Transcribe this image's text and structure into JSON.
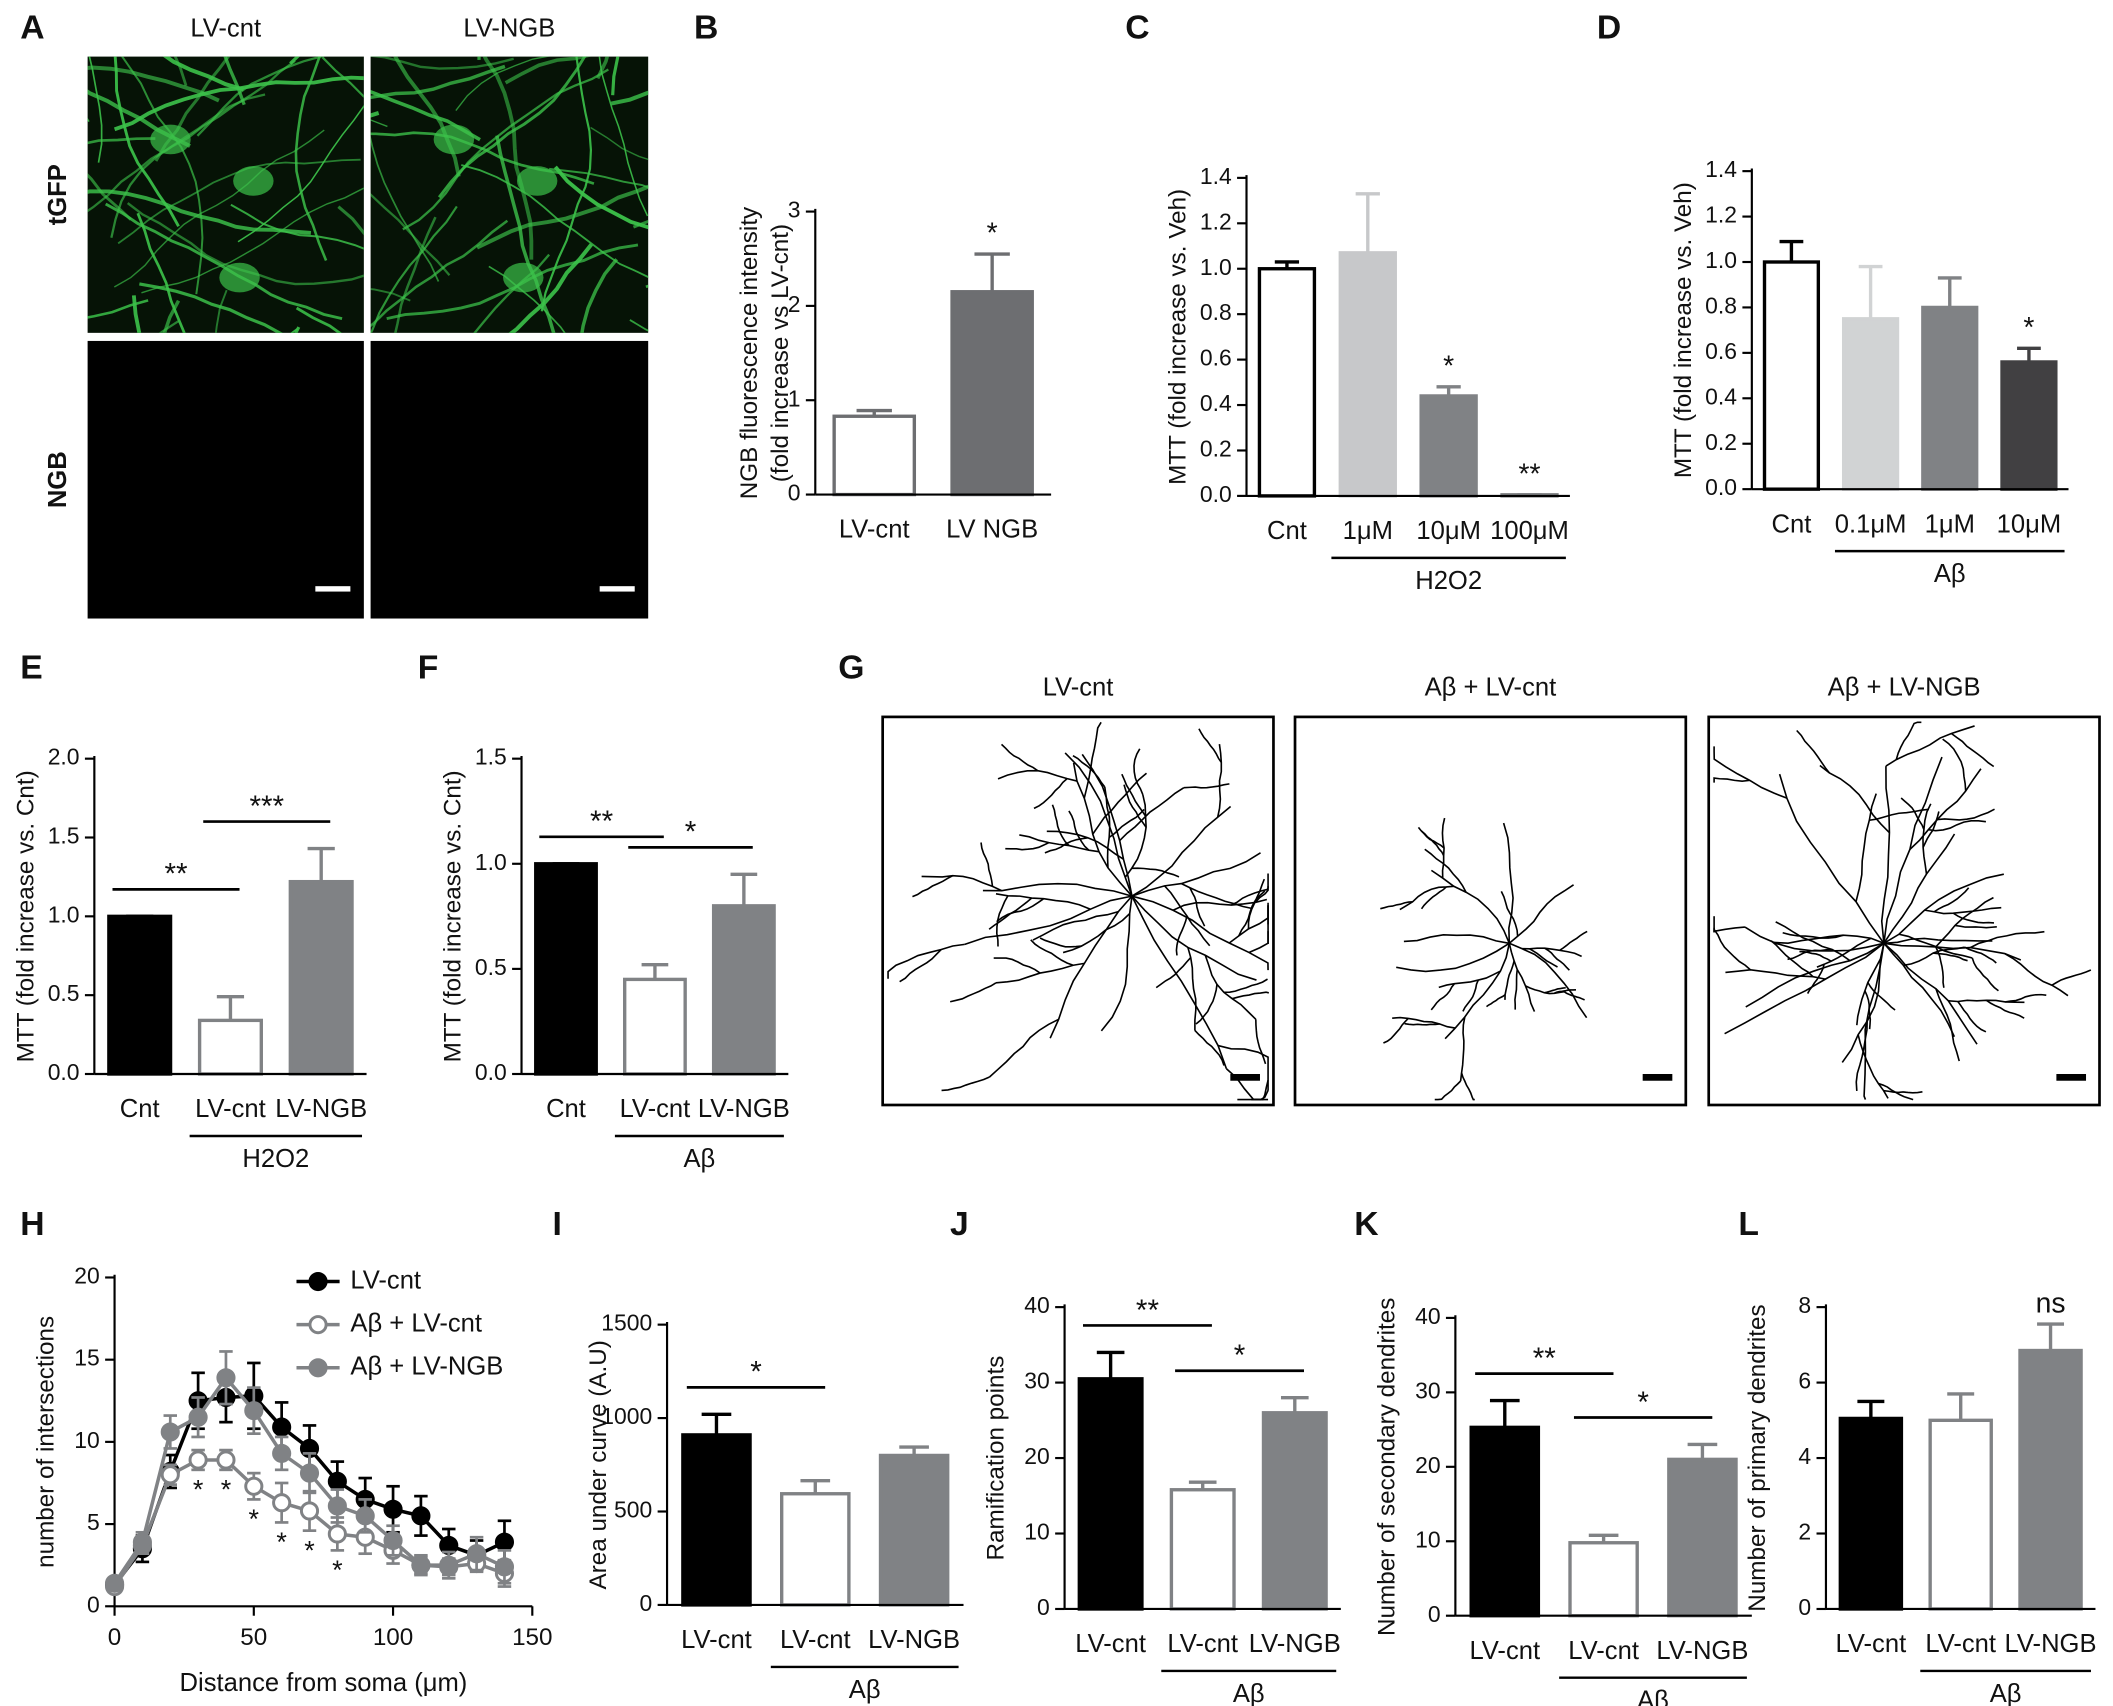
{
  "chart_data": [
    {
      "type": "image-grid",
      "panel": "A",
      "columns": [
        "LV-cnt",
        "LV-NGB"
      ],
      "rows": [
        "tGFP",
        "NGB"
      ],
      "row_colors": [
        "#1aa14a",
        "#000000"
      ]
    },
    {
      "type": "bar",
      "panel": "B",
      "ylabel": [
        "NGB fluorescence intensity",
        "(fold increase vs LV-cnt)"
      ],
      "categories": [
        "LV-cnt",
        "LV NGB"
      ],
      "values": [
        0.83,
        2.15
      ],
      "errors": [
        0.06,
        0.4
      ],
      "colors": [
        "#ffffff",
        "#6d6e71"
      ],
      "edge_colors": [
        "#6d6e71",
        "#6d6e71"
      ],
      "ylim": [
        0,
        3
      ],
      "yticks": [
        0,
        1,
        2,
        3
      ],
      "annotations": [
        {
          "text": "*",
          "index": 1
        }
      ]
    },
    {
      "type": "bar",
      "panel": "C",
      "ylabel": "MTT (fold increase vs. Veh)",
      "categories": [
        "Cnt",
        "1μM",
        "10μM",
        "100μM"
      ],
      "values": [
        1.0,
        1.07,
        0.44,
        0.005
      ],
      "errors": [
        0.03,
        0.26,
        0.04,
        0
      ],
      "colors": [
        "#ffffff",
        "#c7c8ca",
        "#808285",
        "#808285"
      ],
      "edge_colors": [
        "#000000",
        "#c7c8ca",
        "#808285",
        "#808285"
      ],
      "ylim": [
        0,
        1.4
      ],
      "yticks": [
        {
          "value": 0,
          "label": "0.0"
        },
        {
          "value": 0.2,
          "label": "0.2"
        },
        {
          "value": 0.4,
          "label": "0.4"
        },
        {
          "value": 0.6,
          "label": "0.6"
        },
        {
          "value": 0.8,
          "label": "0.8"
        },
        {
          "value": 1,
          "label": "1.0"
        },
        {
          "value": 1.2,
          "label": "1.2"
        },
        {
          "value": 1.4,
          "label": "1.4"
        }
      ],
      "group": {
        "label": "H2O2",
        "from": 1,
        "to": 3
      },
      "annotations": [
        {
          "text": "*",
          "index": 2
        },
        {
          "text": "**",
          "index": 3
        }
      ]
    },
    {
      "type": "bar",
      "panel": "D",
      "ylabel": "MTT (fold increase vs. Veh)",
      "categories": [
        "Cnt",
        "0.1μM",
        "1μM",
        "10μM"
      ],
      "values": [
        1.0,
        0.75,
        0.8,
        0.56
      ],
      "errors": [
        0.09,
        0.23,
        0.13,
        0.06
      ],
      "colors": [
        "#ffffff",
        "#d1d3d4",
        "#808285",
        "#414042"
      ],
      "edge_colors": [
        "#000000",
        "#d1d3d4",
        "#808285",
        "#414042"
      ],
      "ylim": [
        0,
        1.4
      ],
      "yticks": [
        {
          "value": 0,
          "label": "0.0"
        },
        {
          "value": 0.2,
          "label": "0.2"
        },
        {
          "value": 0.4,
          "label": "0.4"
        },
        {
          "value": 0.6,
          "label": "0.6"
        },
        {
          "value": 0.8,
          "label": "0.8"
        },
        {
          "value": 1,
          "label": "1.0"
        },
        {
          "value": 1.2,
          "label": "1.2"
        },
        {
          "value": 1.4,
          "label": "1.4"
        }
      ],
      "group": {
        "label": "Aβ",
        "from": 1,
        "to": 3
      },
      "annotations": [
        {
          "text": "*",
          "index": 3
        }
      ]
    },
    {
      "type": "bar",
      "panel": "E",
      "ylabel": "MTT (fold increase vs. Cnt)",
      "categories": [
        "Cnt",
        "LV-cnt",
        "LV-NGB"
      ],
      "values": [
        1.0,
        0.34,
        1.22
      ],
      "errors": [
        0,
        0.15,
        0.21
      ],
      "colors": [
        "#000000",
        "#ffffff",
        "#808285"
      ],
      "edge_colors": [
        "#000000",
        "#808285",
        "#808285"
      ],
      "ylim": [
        0,
        2
      ],
      "yticks": [
        {
          "value": 0,
          "label": "0.0"
        },
        {
          "value": 0.5,
          "label": "0.5"
        },
        {
          "value": 1,
          "label": "1.0"
        },
        {
          "value": 1.5,
          "label": "1.5"
        },
        {
          "value": 2,
          "label": "2.0"
        }
      ],
      "group": {
        "label": "H2O2",
        "from": 1,
        "to": 2
      },
      "brackets": [
        {
          "text": "**",
          "from": 0,
          "to": 1
        },
        {
          "text": "***",
          "from": 1,
          "to": 2
        }
      ]
    },
    {
      "type": "bar",
      "panel": "F",
      "ylabel": "MTT (fold increase vs. Cnt)",
      "categories": [
        "Cnt",
        "LV-cnt",
        "LV-NGB"
      ],
      "values": [
        1.0,
        0.45,
        0.8
      ],
      "errors": [
        0,
        0.07,
        0.15
      ],
      "colors": [
        "#000000",
        "#ffffff",
        "#808285"
      ],
      "edge_colors": [
        "#000000",
        "#808285",
        "#808285"
      ],
      "ylim": [
        0,
        1.5
      ],
      "yticks": [
        {
          "value": 0,
          "label": "0.0"
        },
        {
          "value": 0.5,
          "label": "0.5"
        },
        {
          "value": 1,
          "label": "1.0"
        },
        {
          "value": 1.5,
          "label": "1.5"
        }
      ],
      "group": {
        "label": "Aβ",
        "from": 1,
        "to": 2
      },
      "brackets": [
        {
          "text": "**",
          "from": 0,
          "to": 1
        },
        {
          "text": "*",
          "from": 1,
          "to": 2
        }
      ]
    },
    {
      "type": "image-row",
      "panel": "G",
      "titles": [
        "LV-cnt",
        "Aβ + LV-cnt",
        "Aβ + LV-NGB"
      ]
    },
    {
      "type": "line",
      "panel": "H",
      "xlabel": "Distance from soma (μm)",
      "ylabel": "number of intersections",
      "x": [
        0,
        10,
        20,
        30,
        40,
        50,
        60,
        70,
        80,
        90,
        100,
        110,
        120,
        130,
        140
      ],
      "series": [
        {
          "name": "LV-cnt",
          "color": "#000000",
          "marker": "filled",
          "values": [
            1.3,
            3.5,
            8.2,
            12.5,
            12.7,
            12.8,
            10.9,
            9.6,
            7.6,
            6.5,
            5.9,
            5.5,
            3.7,
            3.1,
            3.9
          ],
          "errors": [
            0.3,
            0.8,
            1.0,
            1.7,
            1.5,
            2.0,
            1.5,
            1.4,
            1.2,
            1.3,
            1.4,
            1.2,
            1.0,
            0.9,
            1.3
          ]
        },
        {
          "name": "Aβ + LV-cnt",
          "color": "#808285",
          "marker": "open",
          "values": [
            1.2,
            3.7,
            8.0,
            8.9,
            8.9,
            7.3,
            6.3,
            5.8,
            4.4,
            4.2,
            3.4,
            2.5,
            2.4,
            2.6,
            2.0
          ],
          "errors": [
            0.2,
            0.5,
            0.6,
            0.6,
            0.6,
            0.8,
            1.2,
            1.2,
            1.0,
            1.0,
            0.8,
            0.5,
            0.5,
            0.5,
            0.8
          ]
        },
        {
          "name": "Aβ + LV-NGB",
          "color": "#808285",
          "marker": "filled",
          "values": [
            1.4,
            3.9,
            10.6,
            11.5,
            13.9,
            11.9,
            9.3,
            8.1,
            6.1,
            5.5,
            4.0,
            2.5,
            2.5,
            3.2,
            2.4
          ],
          "errors": [
            0.2,
            0.6,
            1.0,
            1.2,
            1.6,
            1.4,
            1.0,
            1.2,
            1.0,
            1.0,
            0.9,
            0.6,
            0.8,
            1.0,
            1.0
          ]
        }
      ],
      "xlim": [
        0,
        150
      ],
      "xticks": [
        0,
        50,
        100,
        150
      ],
      "ylim": [
        0,
        20
      ],
      "yticks": [
        0,
        5,
        10,
        15,
        20
      ],
      "legend": "upper right",
      "annotations": [
        {
          "text": "*",
          "x": 30
        },
        {
          "text": "*",
          "x": 40
        },
        {
          "text": "*",
          "x": 50
        },
        {
          "text": "*",
          "x": 60
        },
        {
          "text": "*",
          "x": 70
        },
        {
          "text": "*",
          "x": 80
        }
      ]
    },
    {
      "type": "bar",
      "panel": "I",
      "ylabel": "Area under curve (A.U)",
      "categories": [
        "LV-cnt",
        "LV-cnt",
        "LV-NGB"
      ],
      "values": [
        910,
        595,
        800
      ],
      "errors": [
        110,
        70,
        45
      ],
      "colors": [
        "#000000",
        "#ffffff",
        "#808285"
      ],
      "edge_colors": [
        "#000000",
        "#808285",
        "#808285"
      ],
      "ylim": [
        0,
        1500
      ],
      "yticks": [
        0,
        500,
        1000,
        1500
      ],
      "group": {
        "label": "Aβ",
        "from": 1,
        "to": 2
      },
      "brackets": [
        {
          "text": "*",
          "from": 0,
          "to": 1
        }
      ]
    },
    {
      "type": "bar",
      "panel": "J",
      "ylabel": "Ramification points",
      "categories": [
        "LV-cnt",
        "LV-cnt",
        "LV-NGB"
      ],
      "values": [
        30.5,
        15.8,
        26
      ],
      "errors": [
        3.5,
        1.0,
        2.0
      ],
      "colors": [
        "#000000",
        "#ffffff",
        "#808285"
      ],
      "edge_colors": [
        "#000000",
        "#808285",
        "#808285"
      ],
      "ylim": [
        0,
        40
      ],
      "yticks": [
        0,
        10,
        20,
        30,
        40
      ],
      "group": {
        "label": "Aβ",
        "from": 1,
        "to": 2
      },
      "brackets": [
        {
          "text": "**",
          "from": 0,
          "to": 1
        },
        {
          "text": "*",
          "from": 1,
          "to": 2
        }
      ]
    },
    {
      "type": "bar",
      "panel": "K",
      "ylabel": "Number of secondary dendrites",
      "categories": [
        "LV-cnt",
        "LV-cnt",
        "LV-NGB"
      ],
      "values": [
        25.3,
        9.8,
        21
      ],
      "errors": [
        3.6,
        1.0,
        2.0
      ],
      "colors": [
        "#000000",
        "#ffffff",
        "#808285"
      ],
      "edge_colors": [
        "#000000",
        "#808285",
        "#808285"
      ],
      "ylim": [
        0,
        40
      ],
      "yticks": [
        0,
        10,
        20,
        30,
        40
      ],
      "group": {
        "label": "Aβ",
        "from": 1,
        "to": 2
      },
      "brackets": [
        {
          "text": "**",
          "from": 0,
          "to": 1
        },
        {
          "text": "*",
          "from": 1,
          "to": 2
        }
      ]
    },
    {
      "type": "bar",
      "panel": "L",
      "ylabel": "Number of primary dendrites",
      "categories": [
        "LV-cnt",
        "LV-cnt",
        "LV-NGB"
      ],
      "values": [
        5.05,
        5.0,
        6.85
      ],
      "errors": [
        0.45,
        0.7,
        0.7
      ],
      "colors": [
        "#000000",
        "#ffffff",
        "#808285"
      ],
      "edge_colors": [
        "#000000",
        "#808285",
        "#808285"
      ],
      "ylim": [
        0,
        8
      ],
      "yticks": [
        0,
        2,
        4,
        6,
        8
      ],
      "group": {
        "label": "Aβ",
        "from": 1,
        "to": 2
      },
      "annotations": [
        {
          "text": "ns",
          "index": 2
        }
      ]
    }
  ]
}
